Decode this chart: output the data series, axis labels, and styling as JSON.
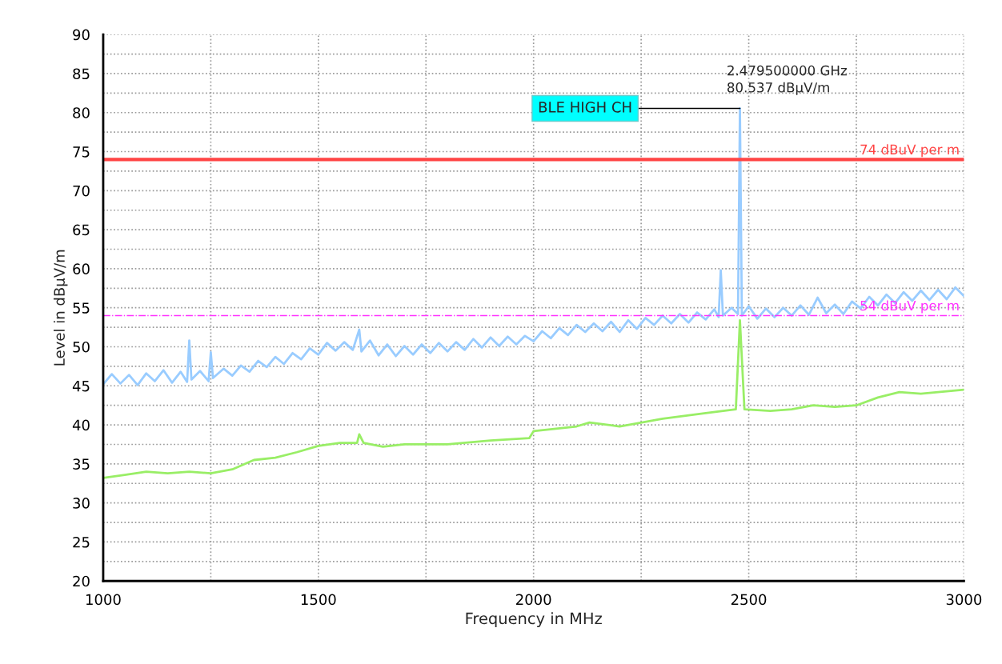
{
  "chart_data": {
    "type": "line",
    "xlabel": "Frequency in MHz",
    "ylabel": "Level in dBµV/m",
    "xlim": [
      1000,
      3000
    ],
    "xticks": [
      1000,
      {
        "value": 1250,
        "label": null
      },
      1500,
      {
        "value": 1750,
        "label": null
      },
      2000,
      {
        "value": 2250,
        "label": null
      },
      2500,
      {
        "value": 2750,
        "label": null
      },
      3000
    ],
    "ylim": [
      20,
      90
    ],
    "yticks": [
      20,
      {
        "value": 22.5,
        "label": null
      },
      25,
      {
        "value": 27.5,
        "label": null
      },
      30,
      {
        "value": 32.5,
        "label": null
      },
      35,
      {
        "value": 37.5,
        "label": null
      },
      40,
      {
        "value": 42.5,
        "label": null
      },
      45,
      {
        "value": 47.5,
        "label": null
      },
      50,
      {
        "value": 52.5,
        "label": null
      },
      55,
      {
        "value": 57.5,
        "label": null
      },
      60,
      {
        "value": 62.5,
        "label": null
      },
      65,
      {
        "value": 67.5,
        "label": null
      },
      70,
      {
        "value": 72.5,
        "label": null
      },
      75,
      {
        "value": 77.5,
        "label": null
      },
      80,
      {
        "value": 82.5,
        "label": null
      },
      85,
      {
        "value": 87.5,
        "label": null
      },
      90
    ],
    "grid": true,
    "marker": "none",
    "series": [
      {
        "color": "#99ccff",
        "x": [
          1000,
          1020,
          1040,
          1060,
          1080,
          1100,
          1120,
          1140,
          1160,
          1180,
          1195,
          1200,
          1205,
          1225,
          1245,
          1250,
          1255,
          1280,
          1300,
          1320,
          1340,
          1360,
          1380,
          1400,
          1420,
          1440,
          1460,
          1480,
          1500,
          1520,
          1540,
          1560,
          1580,
          1595,
          1600,
          1620,
          1640,
          1660,
          1680,
          1700,
          1720,
          1740,
          1760,
          1780,
          1800,
          1820,
          1840,
          1860,
          1880,
          1900,
          1920,
          1940,
          1960,
          1980,
          2000,
          2020,
          2040,
          2060,
          2080,
          2100,
          2120,
          2140,
          2160,
          2180,
          2200,
          2220,
          2240,
          2260,
          2280,
          2300,
          2320,
          2340,
          2360,
          2380,
          2400,
          2420,
          2430,
          2435,
          2440,
          2460,
          2475,
          2479.5,
          2484,
          2500,
          2520,
          2540,
          2560,
          2580,
          2600,
          2620,
          2640,
          2660,
          2680,
          2700,
          2720,
          2740,
          2760,
          2780,
          2800,
          2820,
          2840,
          2860,
          2880,
          2900,
          2920,
          2940,
          2960,
          2980,
          3000
        ],
        "values": [
          45.2,
          46.5,
          45.3,
          46.4,
          45.1,
          46.6,
          45.6,
          47.0,
          45.4,
          46.8,
          45.5,
          50.8,
          45.8,
          46.9,
          45.6,
          49.3,
          46.0,
          47.2,
          46.3,
          47.6,
          46.8,
          48.2,
          47.4,
          48.7,
          47.8,
          49.2,
          48.4,
          49.8,
          49.0,
          50.5,
          49.5,
          50.6,
          49.6,
          52.2,
          49.4,
          50.8,
          48.9,
          50.3,
          48.8,
          50.1,
          49.0,
          50.3,
          49.2,
          50.5,
          49.4,
          50.6,
          49.6,
          51.0,
          49.9,
          51.2,
          50.1,
          51.3,
          50.3,
          51.4,
          50.7,
          52.0,
          51.1,
          52.4,
          51.5,
          52.8,
          51.9,
          53.0,
          52.0,
          53.2,
          51.9,
          53.4,
          52.3,
          53.7,
          52.8,
          54.0,
          53.0,
          54.2,
          53.1,
          54.4,
          53.5,
          54.8,
          53.8,
          59.8,
          54.0,
          55.0,
          54.2,
          80.537,
          54.0,
          55.2,
          53.6,
          54.9,
          53.8,
          55.0,
          54.0,
          55.3,
          54.1,
          56.3,
          54.3,
          55.4,
          54.2,
          55.8,
          54.9,
          56.4,
          55.3,
          56.7,
          55.6,
          57.0,
          55.9,
          57.2,
          56.0,
          57.3,
          56.1,
          57.6,
          56.5
        ]
      },
      {
        "color": "#99ee66",
        "x": [
          1000,
          1050,
          1100,
          1150,
          1200,
          1250,
          1300,
          1350,
          1400,
          1450,
          1500,
          1550,
          1590,
          1595,
          1605,
          1650,
          1700,
          1800,
          1900,
          1990,
          2000,
          2100,
          2130,
          2200,
          2300,
          2400,
          2470,
          2479.5,
          2490,
          2550,
          2600,
          2650,
          2700,
          2750,
          2800,
          2850,
          2900,
          3000
        ],
        "values": [
          33.2,
          33.6,
          34.0,
          33.8,
          34.0,
          33.8,
          34.3,
          35.5,
          35.8,
          36.5,
          37.3,
          37.7,
          37.7,
          38.8,
          37.7,
          37.2,
          37.5,
          37.5,
          38.0,
          38.3,
          39.2,
          39.8,
          40.3,
          39.8,
          40.8,
          41.5,
          42.0,
          53.4,
          42.0,
          41.8,
          42.0,
          42.5,
          42.3,
          42.5,
          43.5,
          44.2,
          44.0,
          44.5
        ]
      }
    ],
    "ref_lines": [
      {
        "axis": "y",
        "value": 74,
        "label": "74 dBuV per m",
        "color": "#ff4444",
        "line_style": "solid"
      },
      {
        "axis": "y",
        "value": 54,
        "label": "54 dBuV per m",
        "color": "#ff33ff",
        "line_style": "dashed"
      }
    ],
    "annotations": [
      {
        "text": "BLE HIGH CH",
        "x": 2479.5,
        "y": 80.537
      },
      {
        "text": "2.479500000 GHz\n80.537 dBµV/m",
        "x": 2479.5,
        "y": 80.537
      }
    ]
  }
}
